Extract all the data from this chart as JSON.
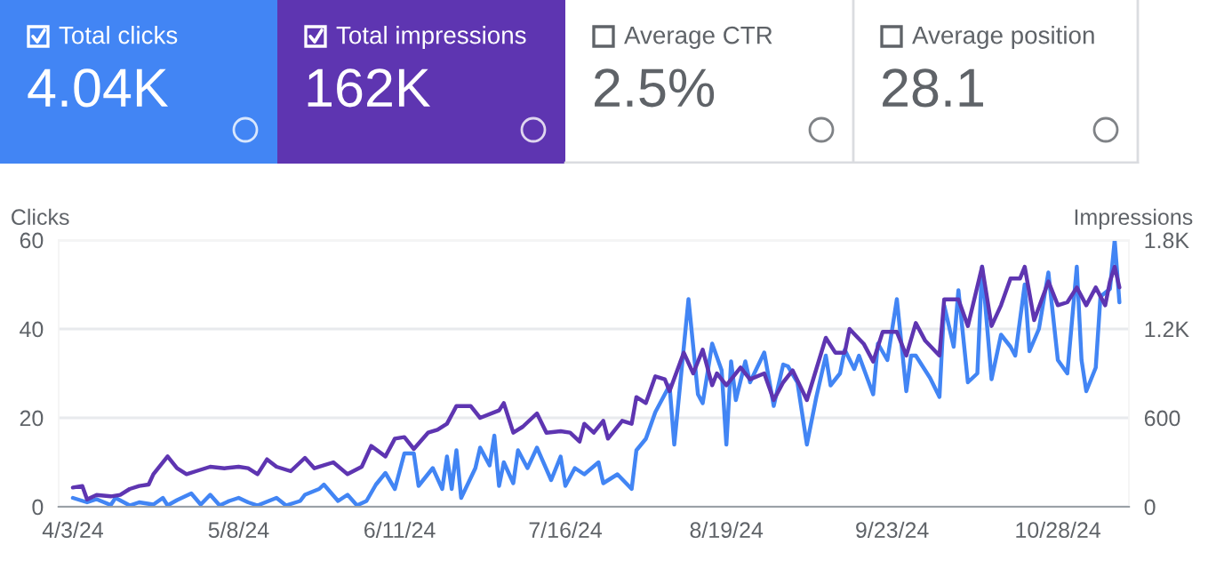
{
  "chart_data": [
    {
      "type": "other",
      "colors": [
        "#4285f4",
        "#5e35b1",
        null,
        null
      ],
      "annotations": [
        "Total clicks",
        "4.04K",
        "Total impressions",
        "162K",
        "Average CTR",
        "2.5%",
        "Average position",
        "28.1"
      ]
    },
    {
      "type": "line",
      "ylabel": "Clicks",
      "y2label": "Impressions",
      "xlim": [
        "2024-03-31",
        "2024-11-12"
      ],
      "xticks": [
        {
          "value": "2024-04-03",
          "label": "4/3/24"
        },
        {
          "value": "2024-05-08",
          "label": "5/8/24"
        },
        {
          "value": "2024-06-11",
          "label": "6/11/24"
        },
        {
          "value": "2024-07-16",
          "label": "7/16/24"
        },
        {
          "value": "2024-08-19",
          "label": "8/19/24"
        },
        {
          "value": "2024-09-23",
          "label": "9/23/24"
        },
        {
          "value": "2024-10-28",
          "label": "10/28/24"
        }
      ],
      "ylim": [
        0,
        60
      ],
      "yticks": [
        0,
        20,
        40,
        60
      ],
      "y2lim": [
        0,
        1800
      ],
      "y2ticks": [
        0,
        600,
        {
          "value": 1200,
          "label": "1.2K"
        },
        {
          "value": 1800,
          "label": "1.8K"
        }
      ],
      "grid": "y",
      "legend": false,
      "marker": "none",
      "line_style": "solid",
      "series": [
        {
          "color": "#5e35b1",
          "axis": "y2",
          "x": [
            "2024-04-03",
            "2024-04-05",
            "2024-04-06",
            "2024-04-08",
            "2024-04-11",
            "2024-04-13",
            "2024-04-15",
            "2024-04-17",
            "2024-04-19",
            "2024-04-20",
            "2024-04-23",
            "2024-04-25",
            "2024-04-27",
            "2024-04-29",
            "2024-05-02",
            "2024-05-05",
            "2024-05-08",
            "2024-05-10",
            "2024-05-12",
            "2024-05-14",
            "2024-05-16",
            "2024-05-19",
            "2024-05-22",
            "2024-05-24",
            "2024-05-28",
            "2024-05-31",
            "2024-06-03",
            "2024-06-05",
            "2024-06-08",
            "2024-06-10",
            "2024-06-12",
            "2024-06-14",
            "2024-06-17",
            "2024-06-19",
            "2024-06-21",
            "2024-06-23",
            "2024-06-26",
            "2024-06-28",
            "2024-07-02",
            "2024-07-03",
            "2024-07-05",
            "2024-07-07",
            "2024-07-10",
            "2024-07-12",
            "2024-07-15",
            "2024-07-17",
            "2024-07-19",
            "2024-07-20",
            "2024-07-22",
            "2024-07-24",
            "2024-07-25",
            "2024-07-28",
            "2024-07-30",
            "2024-07-31",
            "2024-08-02",
            "2024-08-04",
            "2024-08-06",
            "2024-08-07",
            "2024-08-10",
            "2024-08-12",
            "2024-08-14",
            "2024-08-16",
            "2024-08-17",
            "2024-08-19",
            "2024-08-22",
            "2024-08-24",
            "2024-08-27",
            "2024-08-29",
            "2024-08-31",
            "2024-09-02",
            "2024-09-05",
            "2024-09-09",
            "2024-09-11",
            "2024-09-13",
            "2024-09-14",
            "2024-09-17",
            "2024-09-19",
            "2024-09-21",
            "2024-09-24",
            "2024-09-26",
            "2024-09-28",
            "2024-09-30",
            "2024-10-03",
            "2024-10-04",
            "2024-10-07",
            "2024-10-09",
            "2024-10-12",
            "2024-10-14",
            "2024-10-16",
            "2024-10-18",
            "2024-10-20",
            "2024-10-21",
            "2024-10-23",
            "2024-10-26",
            "2024-10-28",
            "2024-10-30",
            "2024-11-01",
            "2024-11-03",
            "2024-11-05",
            "2024-11-07",
            "2024-11-08",
            "2024-11-09",
            "2024-11-10"
          ],
          "values": [
            130,
            140,
            50,
            80,
            70,
            80,
            120,
            140,
            150,
            220,
            340,
            260,
            220,
            240,
            270,
            260,
            270,
            260,
            220,
            320,
            270,
            240,
            330,
            260,
            300,
            220,
            270,
            410,
            340,
            460,
            470,
            390,
            500,
            520,
            560,
            680,
            680,
            600,
            650,
            700,
            500,
            540,
            630,
            500,
            510,
            500,
            440,
            560,
            500,
            580,
            460,
            580,
            560,
            740,
            700,
            880,
            860,
            780,
            1040,
            900,
            1060,
            820,
            900,
            820,
            940,
            860,
            900,
            720,
            840,
            920,
            720,
            1140,
            1040,
            1040,
            1200,
            1100,
            980,
            1180,
            1180,
            1020,
            1240,
            1120,
            1020,
            1400,
            1400,
            1220,
            1620,
            1220,
            1360,
            1540,
            1540,
            1620,
            1260,
            1520,
            1360,
            1380,
            1480,
            1360,
            1480,
            1360,
            1520,
            1620,
            1480
          ]
        },
        {
          "color": "#4285f4",
          "axis": "y",
          "x": [
            "2024-04-03",
            "2024-04-06",
            "2024-04-08",
            "2024-04-11",
            "2024-04-12",
            "2024-04-15",
            "2024-04-17",
            "2024-04-20",
            "2024-04-22",
            "2024-04-23",
            "2024-04-25",
            "2024-04-28",
            "2024-04-30",
            "2024-05-02",
            "2024-05-04",
            "2024-05-06",
            "2024-05-08",
            "2024-05-10",
            "2024-05-12",
            "2024-05-16",
            "2024-05-18",
            "2024-05-21",
            "2024-05-22",
            "2024-05-25",
            "2024-05-26",
            "2024-05-29",
            "2024-05-31",
            "2024-06-02",
            "2024-06-04",
            "2024-06-06",
            "2024-06-08",
            "2024-06-10",
            "2024-06-12",
            "2024-06-14",
            "2024-06-15",
            "2024-06-18",
            "2024-06-20",
            "2024-06-21",
            "2024-06-22",
            "2024-06-23",
            "2024-06-24",
            "2024-06-27",
            "2024-06-28",
            "2024-06-30",
            "2024-07-01",
            "2024-07-02",
            "2024-07-03",
            "2024-07-05",
            "2024-07-06",
            "2024-07-08",
            "2024-07-10",
            "2024-07-13",
            "2024-07-15",
            "2024-07-16",
            "2024-07-18",
            "2024-07-20",
            "2024-07-23",
            "2024-07-24",
            "2024-07-27",
            "2024-07-30",
            "2024-07-31",
            "2024-08-02",
            "2024-08-04",
            "2024-08-07",
            "2024-08-08",
            "2024-08-11",
            "2024-08-13",
            "2024-08-14",
            "2024-08-16",
            "2024-08-18",
            "2024-08-19",
            "2024-08-20",
            "2024-08-21",
            "2024-08-23",
            "2024-08-24",
            "2024-08-27",
            "2024-08-29",
            "2024-08-31",
            "2024-09-01",
            "2024-09-03",
            "2024-09-05",
            "2024-09-07",
            "2024-09-09",
            "2024-09-10",
            "2024-09-12",
            "2024-09-13",
            "2024-09-15",
            "2024-09-16",
            "2024-09-19",
            "2024-09-20",
            "2024-09-22",
            "2024-09-24",
            "2024-09-26",
            "2024-09-27",
            "2024-09-28",
            "2024-10-01",
            "2024-10-03",
            "2024-10-04",
            "2024-10-06",
            "2024-10-07",
            "2024-10-09",
            "2024-10-11",
            "2024-10-12",
            "2024-10-14",
            "2024-10-16",
            "2024-10-18",
            "2024-10-19",
            "2024-10-21",
            "2024-10-22",
            "2024-10-24",
            "2024-10-26",
            "2024-10-28",
            "2024-10-30",
            "2024-11-01",
            "2024-11-02",
            "2024-11-03",
            "2024-11-05",
            "2024-11-06",
            "2024-11-08",
            "2024-11-09",
            "2024-11-10"
          ],
          "values": [
            2,
            1,
            1.7,
            0.4,
            2,
            0.3,
            1,
            0.5,
            2,
            0.3,
            1.5,
            3,
            0.5,
            2.7,
            0.3,
            1.3,
            2,
            1,
            0.3,
            2,
            0.3,
            1.3,
            2.7,
            4,
            5,
            1.3,
            2.7,
            0.3,
            1.3,
            5,
            7.6,
            4,
            12,
            12,
            4.7,
            8.7,
            4,
            11.3,
            4,
            12.7,
            2,
            8.7,
            13.3,
            9.3,
            16,
            4.7,
            10,
            5.3,
            12.7,
            8.7,
            13.3,
            6,
            11.3,
            4.7,
            8.7,
            7.3,
            10,
            5.3,
            7.3,
            4,
            12.7,
            15.3,
            21.3,
            27.3,
            14,
            46.7,
            25.3,
            23.3,
            36.7,
            30.7,
            14,
            32.7,
            24,
            32.7,
            28,
            34.7,
            22.7,
            32,
            31.6,
            28,
            14,
            24.7,
            34,
            27.3,
            30,
            35.3,
            31,
            34,
            25.3,
            36.7,
            33,
            46.7,
            26,
            34,
            34,
            29,
            24.7,
            45.3,
            36,
            48.7,
            28,
            30,
            54,
            28.7,
            38.7,
            36,
            34,
            50,
            35,
            40,
            52.7,
            33,
            30,
            54,
            33,
            26,
            31.3,
            47.3,
            49,
            60,
            46
          ]
        }
      ]
    }
  ]
}
